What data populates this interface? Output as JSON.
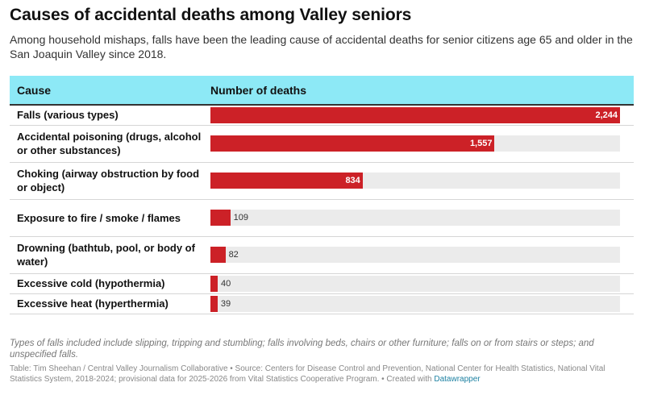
{
  "title": "Causes of accidental deaths among Valley seniors",
  "subtitle": "Among household mishaps, falls have been the leading cause of accidental deaths for senior citizens age 65 and older in the San Joaquin Valley since 2018.",
  "columns": {
    "cause": "Cause",
    "value": "Number of deaths"
  },
  "colors": {
    "bar": "#cc2127",
    "header": "#8de9f6",
    "track": "#ebebeb"
  },
  "chart_data": {
    "type": "bar",
    "orientation": "horizontal",
    "categories": [
      "Falls (various types)",
      "Accidental poisoning (drugs, alcohol or other substances)",
      "Choking (airway obstruction by food or object)",
      "Exposure to fire / smoke / flames",
      "Drowning (bathtub, pool, or body of water)",
      "Excessive cold (hypothermia)",
      "Excessive heat (hyperthermia)"
    ],
    "values": [
      2244,
      1557,
      834,
      109,
      82,
      40,
      39
    ],
    "value_labels": [
      "2,244",
      "1,557",
      "834",
      "109",
      "82",
      "40",
      "39"
    ],
    "xlim": [
      0,
      2244
    ]
  },
  "note": "Types of falls included include slipping, tripping and stumbling; falls involving beds, chairs or other furniture; falls on or from stairs or steps; and unspecified falls.",
  "source": "Table: Tim Sheehan / Central Valley Journalism Collaborative • Source: Centers for Disease Control and Prevention, National Center for Health Statistics, National Vital Statistics System, 2018-2024; provisional data for 2025-2026 from Vital Statistics Cooperative Program. • Created with",
  "source_link": "Datawrapper"
}
